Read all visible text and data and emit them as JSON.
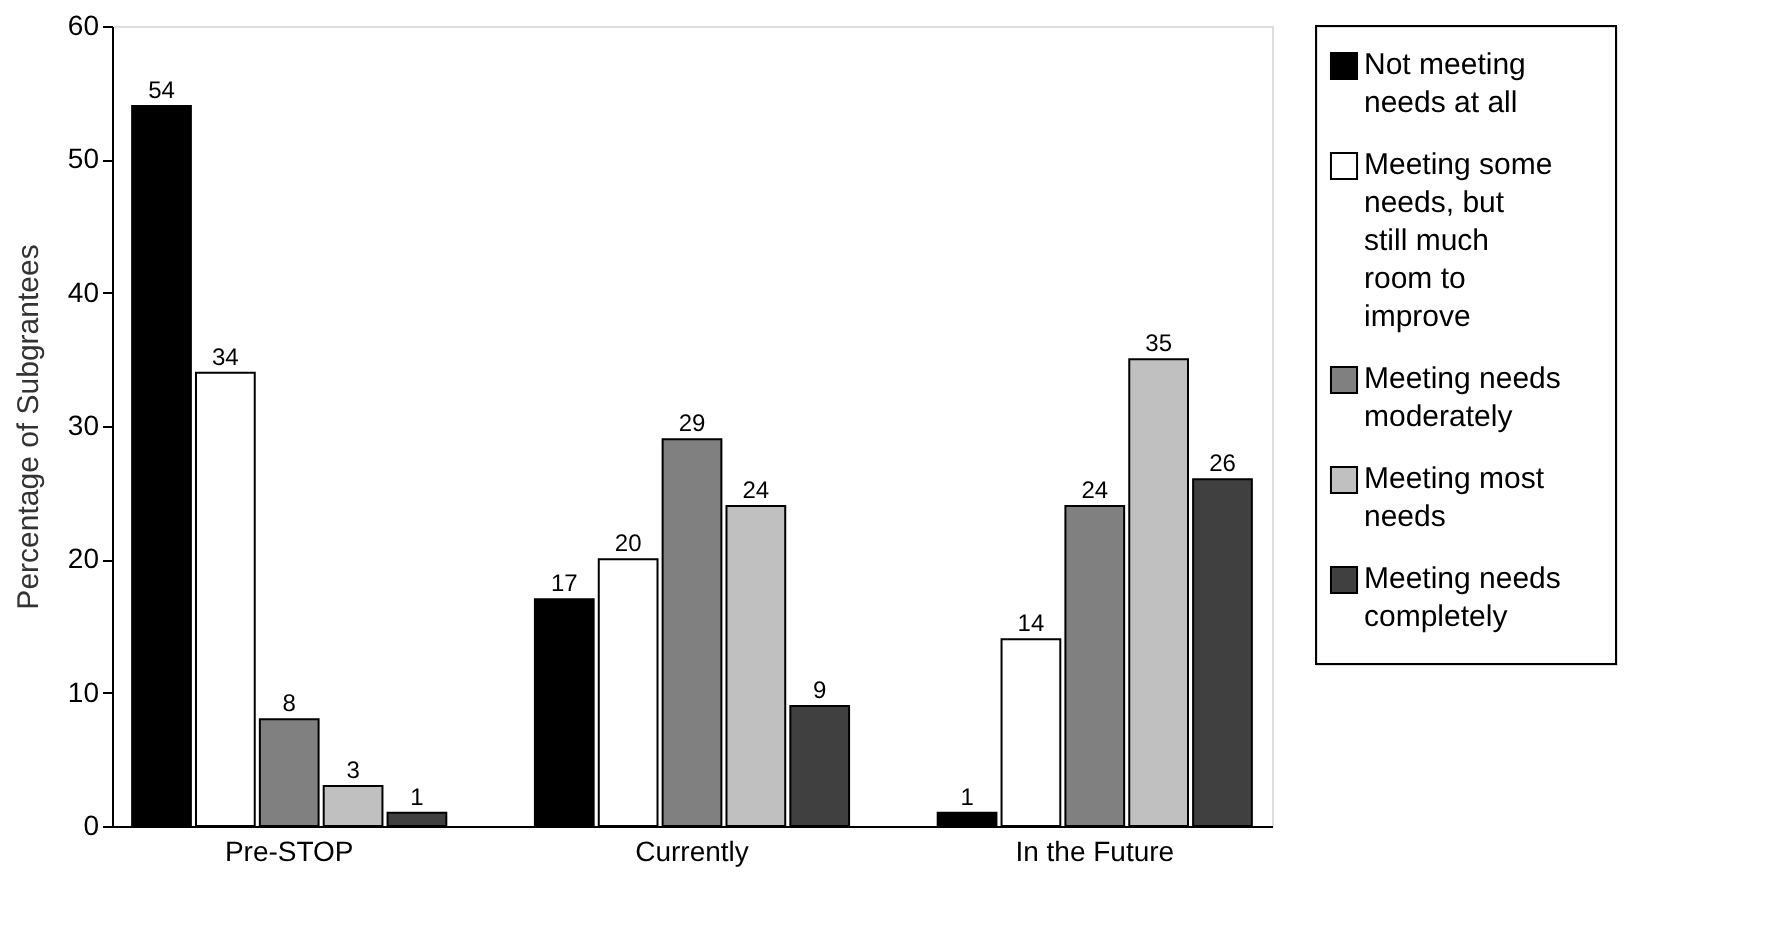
{
  "chart_data": {
    "type": "bar",
    "ylabel": "Percentage of Subgrantees",
    "categories": [
      "Pre-STOP",
      "Currently",
      "In the Future"
    ],
    "series": [
      {
        "name": "Not meeting needs at all",
        "color": "#000000",
        "values": [
          54,
          17,
          1
        ]
      },
      {
        "name": "Meeting some needs, but still much room to improve",
        "color": "#ffffff",
        "values": [
          34,
          20,
          14
        ]
      },
      {
        "name": "Meeting needs moderately",
        "color": "#808080",
        "values": [
          8,
          29,
          24
        ]
      },
      {
        "name": "Meeting most needs",
        "color": "#c0c0c0",
        "values": [
          3,
          24,
          35
        ]
      },
      {
        "name": "Meeting needs completely",
        "color": "#404040",
        "values": [
          1,
          9,
          26
        ]
      }
    ],
    "ylim": [
      0,
      60
    ],
    "yticks": [
      0,
      10,
      20,
      30,
      40,
      50,
      60
    ],
    "data_labels": true,
    "legend": "right",
    "grid": false
  }
}
